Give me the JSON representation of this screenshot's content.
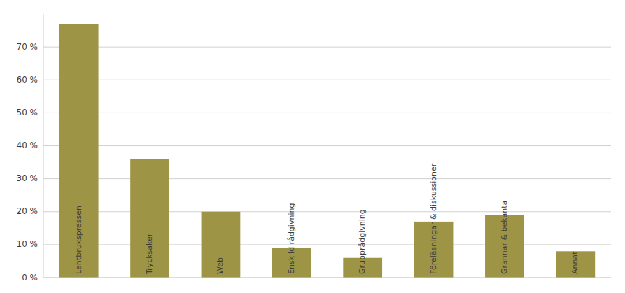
{
  "chart_data": {
    "type": "bar",
    "categories": [
      "Lantbrukspressen",
      "Trycksaker",
      "Web",
      "Enskild rådgivning",
      "Grupprådgivning",
      "Föreläsningar & diskussioner",
      "Grannar & bekanta",
      "Annat"
    ],
    "values": [
      77,
      36,
      20,
      9,
      6,
      17,
      19,
      8
    ],
    "color": "#9e9445",
    "ylim": [
      0,
      80
    ],
    "yticks": [
      {
        "value": 0,
        "label": "0 %"
      },
      {
        "value": 10,
        "label": "10 %"
      },
      {
        "value": 20,
        "label": "20 %"
      },
      {
        "value": 30,
        "label": "30 %"
      },
      {
        "value": 40,
        "label": "40 %"
      },
      {
        "value": 50,
        "label": "50 %"
      },
      {
        "value": 60,
        "label": "60 %"
      },
      {
        "value": 70,
        "label": "70 %"
      }
    ],
    "grid": true
  }
}
